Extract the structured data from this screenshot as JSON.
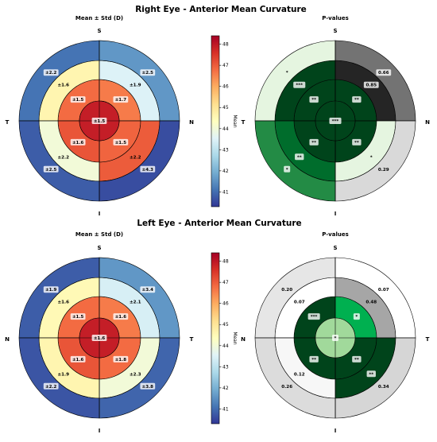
{
  "chart_data": [
    {
      "type": "heatmap",
      "title": "Right Eye - Anterior Mean Curvature",
      "panels": [
        {
          "name": "mean-std",
          "subtitle": "Mean ± Std (D)",
          "orientation": {
            "top": "S",
            "bottom": "I",
            "left": "T",
            "right": "N"
          },
          "colorbar": {
            "label": "Mean",
            "ticks": [
              41,
              42,
              43,
              44,
              45,
              46,
              47,
              48
            ],
            "range": [
              40.3,
              48.4
            ]
          },
          "center": {
            "mean": 47.9,
            "label": "±1.5"
          },
          "ring1": [
            {
              "quadrant": "S-T",
              "mean": 46.8,
              "label": "±1.5"
            },
            {
              "quadrant": "S-N",
              "mean": 46.6,
              "label": "±1.7"
            },
            {
              "quadrant": "I-N",
              "mean": 46.9,
              "label": "±1.5"
            },
            {
              "quadrant": "I-T",
              "mean": 47.1,
              "label": "±1.6"
            }
          ],
          "ring2": [
            {
              "quadrant": "S-T",
              "mean": 44.6,
              "label": "±1.6"
            },
            {
              "quadrant": "S-N",
              "mean": 43.5,
              "label": "±1.9"
            },
            {
              "quadrant": "I-N",
              "mean": 47.0,
              "label": "±2.2"
            },
            {
              "quadrant": "I-T",
              "mean": 44.0,
              "label": "±2.2"
            }
          ],
          "ring3": [
            {
              "quadrant": "S-T",
              "mean": 41.1,
              "label": "±2.2"
            },
            {
              "quadrant": "S-N",
              "mean": 41.6,
              "label": "±2.5"
            },
            {
              "quadrant": "I-N",
              "mean": 40.6,
              "label": "±4.3"
            },
            {
              "quadrant": "I-T",
              "mean": 40.8,
              "label": "±2.5"
            }
          ]
        },
        {
          "name": "p-values",
          "subtitle": "P-values",
          "orientation": {
            "top": "S",
            "bottom": "I",
            "left": "T",
            "right": "N"
          },
          "center": {
            "color": "#00441b",
            "label": "***"
          },
          "ring1": [
            {
              "quadrant": "S-T",
              "color": "#00441b",
              "label": "**"
            },
            {
              "quadrant": "S-N",
              "color": "#00441b",
              "label": "**"
            },
            {
              "quadrant": "I-N",
              "color": "#00441b",
              "label": "**"
            },
            {
              "quadrant": "I-T",
              "color": "#00441b",
              "label": "**"
            }
          ],
          "ring2": [
            {
              "quadrant": "S-T",
              "color": "#00441b",
              "label": "***"
            },
            {
              "quadrant": "S-N",
              "color": "#252525",
              "label": "0.85"
            },
            {
              "quadrant": "I-N",
              "color": "#e5f5e0",
              "label": "*"
            },
            {
              "quadrant": "I-T",
              "color": "#006d2c",
              "label": "**"
            }
          ],
          "ring3": [
            {
              "quadrant": "S-T",
              "color": "#e5f5e0",
              "label": "*"
            },
            {
              "quadrant": "S-N",
              "color": "#737373",
              "label": "0.66"
            },
            {
              "quadrant": "I-N",
              "color": "#d9d9d9",
              "label": "0.29"
            },
            {
              "quadrant": "I-T",
              "color": "#238b45",
              "label": "*"
            }
          ]
        }
      ]
    },
    {
      "type": "heatmap",
      "title": "Left Eye - Anterior Mean Curvature",
      "panels": [
        {
          "name": "mean-std",
          "subtitle": "Mean ± Std (D)",
          "orientation": {
            "top": "S",
            "bottom": "I",
            "left": "N",
            "right": "T"
          },
          "colorbar": {
            "label": "Mean",
            "ticks": [
              41,
              42,
              43,
              44,
              45,
              46,
              47,
              48
            ],
            "range": [
              40.3,
              48.4
            ]
          },
          "center": {
            "mean": 47.9,
            "label": "±1.6"
          },
          "ring1": [
            {
              "quadrant": "S-N",
              "mean": 46.8,
              "label": "±1.5"
            },
            {
              "quadrant": "S-T",
              "mean": 46.6,
              "label": "±1.6"
            },
            {
              "quadrant": "I-T",
              "mean": 46.8,
              "label": "±1.8"
            },
            {
              "quadrant": "I-N",
              "mean": 47.1,
              "label": "±1.6"
            }
          ],
          "ring2": [
            {
              "quadrant": "S-N",
              "mean": 44.5,
              "label": "±1.6"
            },
            {
              "quadrant": "S-T",
              "mean": 43.4,
              "label": "±2.1"
            },
            {
              "quadrant": "I-T",
              "mean": 44.0,
              "label": "±2.3"
            },
            {
              "quadrant": "I-N",
              "mean": 44.6,
              "label": "±1.9"
            }
          ],
          "ring3": [
            {
              "quadrant": "S-N",
              "mean": 40.8,
              "label": "±1.9"
            },
            {
              "quadrant": "S-T",
              "mean": 41.6,
              "label": "±3.4"
            },
            {
              "quadrant": "I-T",
              "mean": 40.9,
              "label": "±3.8"
            },
            {
              "quadrant": "I-N",
              "mean": 40.7,
              "label": "±2.2"
            }
          ]
        },
        {
          "name": "p-values",
          "subtitle": "P-values",
          "orientation": {
            "top": "S",
            "bottom": "I",
            "left": "N",
            "right": "T"
          },
          "center": {
            "color": "#a1d99b",
            "label": "*"
          },
          "ring1": [
            {
              "quadrant": "S-N",
              "color": "#00441b",
              "label": "***"
            },
            {
              "quadrant": "S-T",
              "color": "#00b050",
              "label": "*"
            },
            {
              "quadrant": "I-T",
              "color": "#00441b",
              "label": "**"
            },
            {
              "quadrant": "I-N",
              "color": "#00441b",
              "label": "**"
            }
          ],
          "ring2": [
            {
              "quadrant": "S-N",
              "color": "#ffffff",
              "label": "0.07"
            },
            {
              "quadrant": "S-T",
              "color": "#a6a6a6",
              "label": "0.48"
            },
            {
              "quadrant": "I-T",
              "color": "#00441b",
              "label": "**"
            },
            {
              "quadrant": "I-N",
              "color": "#f7f7f7",
              "label": "0.12"
            }
          ],
          "ring3": [
            {
              "quadrant": "S-N",
              "color": "#e6e6e6",
              "label": "0.20"
            },
            {
              "quadrant": "S-T",
              "color": "#ffffff",
              "label": "0.07"
            },
            {
              "quadrant": "I-T",
              "color": "#d6d6d6",
              "label": "0.34"
            },
            {
              "quadrant": "I-N",
              "color": "#dcdcdc",
              "label": "0.26"
            }
          ]
        }
      ]
    }
  ]
}
